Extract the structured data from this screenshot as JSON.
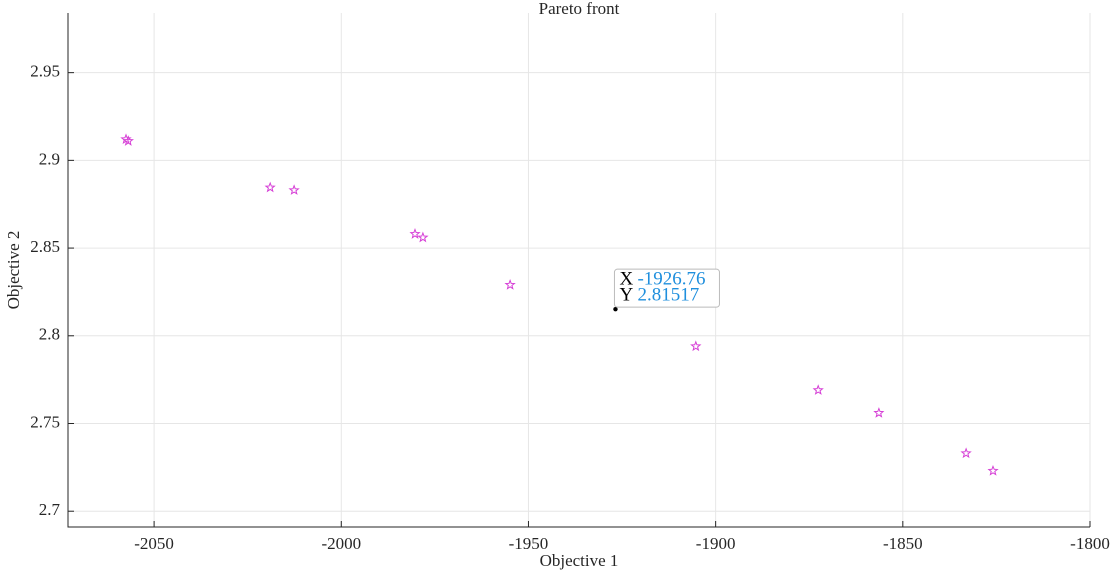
{
  "chart_data": {
    "type": "scatter",
    "title": "Pareto front",
    "xlabel": "Objective 1",
    "ylabel": "Objective 2",
    "series": [
      {
        "color": "#d63fd6",
        "marker": "star",
        "x": [
          -2057.5,
          -2056.9,
          -2019.0,
          -2012.6,
          -1980.3,
          -1978.2,
          -1954.9,
          -1905.3,
          -1872.6,
          -1856.4,
          -1833.1,
          -1825.9
        ],
        "values": [
          2.912,
          2.911,
          2.8845,
          2.883,
          2.858,
          2.856,
          2.829,
          2.794,
          2.769,
          2.756,
          2.733,
          2.723
        ]
      }
    ],
    "xlim": [
      -2073,
      -1800
    ],
    "ylim": [
      2.691,
      2.984
    ],
    "xticks": [
      -2050,
      -2000,
      -1950,
      -1900,
      -1850,
      -1800
    ],
    "yticks": [
      2.7,
      2.75,
      2.8,
      2.85,
      2.9,
      2.95
    ],
    "grid": true,
    "datatip": {
      "x_label": "X",
      "x": -1926.76,
      "y_label": "Y",
      "y": 2.81517
    }
  }
}
